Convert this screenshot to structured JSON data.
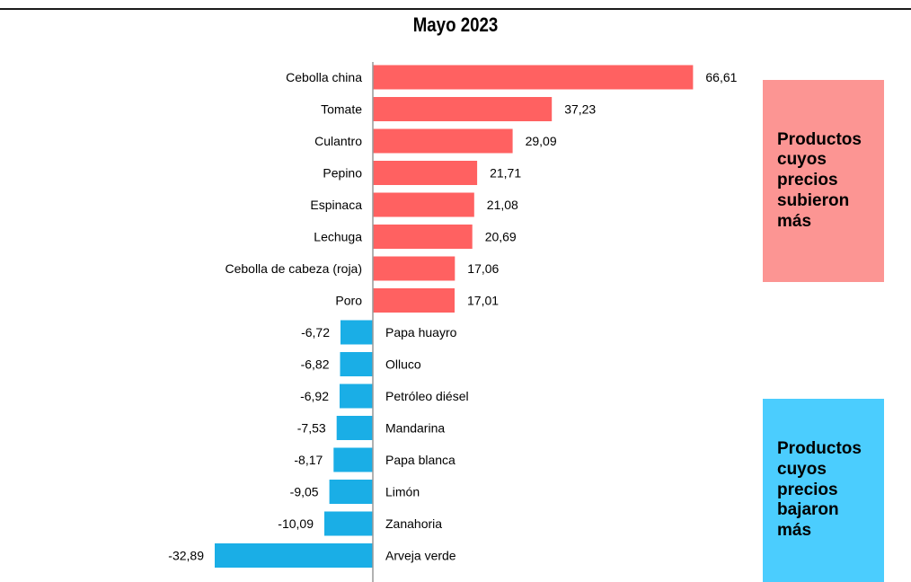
{
  "chart_data": {
    "type": "bar",
    "orientation": "horizontal",
    "title": "Mayo 2023",
    "categories": [
      "Cebolla china",
      "Tomate",
      "Culantro",
      "Pepino",
      "Espinaca",
      "Lechuga",
      "Cebolla de cabeza (roja)",
      "Poro",
      "Papa huayro",
      "Olluco",
      "Petróleo diésel",
      "Mandarina",
      "Papa blanca",
      "Limón",
      "Zanahoria",
      "Arveja verde"
    ],
    "values": [
      66.61,
      37.23,
      29.09,
      21.71,
      21.08,
      20.69,
      17.06,
      17.01,
      -6.72,
      -6.82,
      -6.92,
      -7.53,
      -8.17,
      -9.05,
      -10.09,
      -32.89
    ],
    "value_labels": [
      "66,61",
      "37,23",
      "29,09",
      "21,71",
      "21,08",
      "20,69",
      "17,06",
      "17,01",
      "-6,72",
      "-6,82",
      "-6,92",
      "-7,53",
      "-8,17",
      "-9,05",
      "-10,09",
      "-32,89"
    ],
    "grid": false,
    "xlim": [
      -32.89,
      66.61
    ],
    "colors": {
      "positive": "#ff6161",
      "negative": "#1aaee6",
      "axis": "#999999"
    },
    "annotations": {
      "up_label": "Productos cuyos precios subieron más",
      "up_color": "#fc9593",
      "down_label": "Productos cuyos precios bajaron más",
      "down_color": "#4bcdfe"
    }
  }
}
